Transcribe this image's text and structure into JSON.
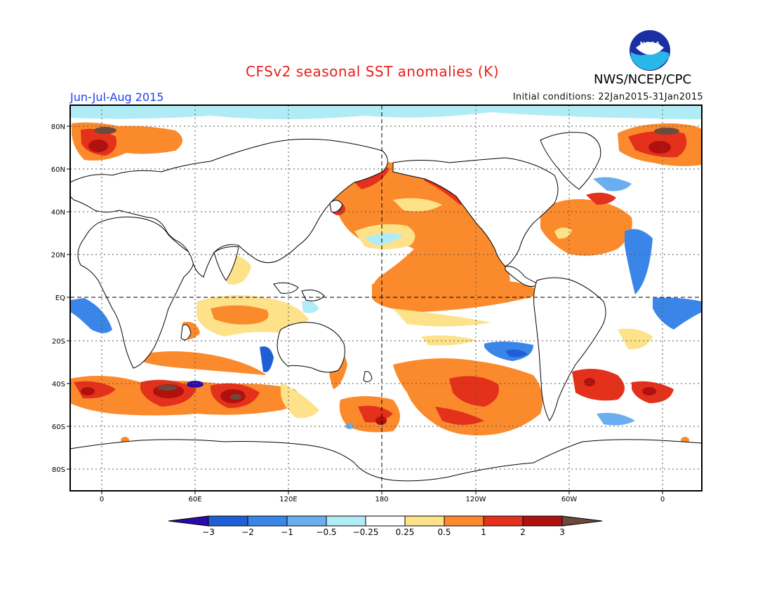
{
  "header": {
    "title": "CFSv2 seasonal SST anomalies (K)",
    "agency": "NWS/NCEP/CPC",
    "season": "Jun-Jul-Aug 2015",
    "initial_conditions": "Initial conditions: 22Jan2015-31Jan2015",
    "logo_text": "NOAA"
  },
  "map": {
    "lat_labels": [
      "80N",
      "60N",
      "40N",
      "20N",
      "EQ",
      "20S",
      "40S",
      "60S",
      "80S"
    ],
    "lon_labels": [
      "0",
      "60E",
      "120E",
      "180",
      "120W",
      "60W",
      "0"
    ]
  },
  "colorbar": {
    "labels": [
      "−3",
      "−2",
      "−1",
      "−0.5",
      "−0.25",
      "0.25",
      "0.5",
      "1",
      "2",
      "3"
    ],
    "colors": [
      "#2a0aa8",
      "#1f5fd6",
      "#3a86e8",
      "#6aaef0",
      "#b0ecf5",
      "#ffffff",
      "#fde28a",
      "#fb8a2c",
      "#e4311b",
      "#b0110f",
      "#6b4a3c"
    ]
  }
}
